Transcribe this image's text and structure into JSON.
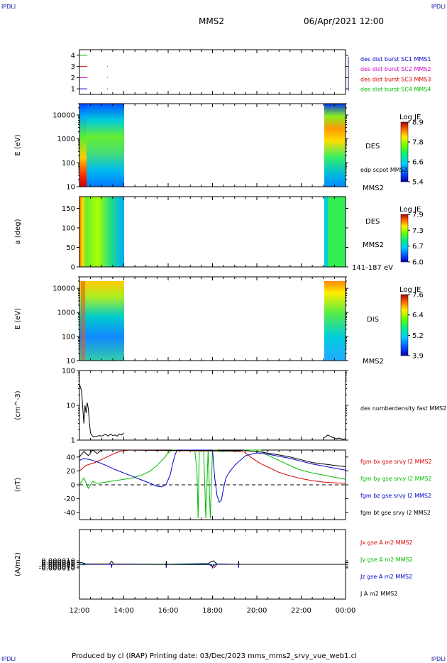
{
  "corners": {
    "tl": "IPDLI",
    "tr": "IPDLI",
    "bl": "IPDLI",
    "br": "IPDLI"
  },
  "header": {
    "spacecraft": "MMS2",
    "date": "06/Apr/2021 12:00"
  },
  "footer": {
    "text": "Produced by cl (IRAP)   Printing date: 03/Dec/2023   mms_mms2_srvy_vue_web1.cl"
  },
  "colors": {
    "sc1": "#0000cc",
    "sc2": "#cc00cc",
    "sc3": "#dd0000",
    "sc4": "#00bb00",
    "black": "#000000"
  },
  "x_axis": {
    "ticks": [
      "12:00",
      "14:00",
      "16:00",
      "18:00",
      "20:00",
      "22:00",
      "00:00"
    ],
    "range_hours": [
      12,
      24
    ]
  },
  "chart_data": [
    {
      "id": "burst",
      "type": "line",
      "ylim": [
        0.5,
        4.5
      ],
      "yticks": [
        "1",
        "2",
        "3",
        "4"
      ],
      "legend_placement": "right",
      "legend": [
        "des dist burst SC1 MMS1",
        "des dist burst SC2 MMS2",
        "des dist burst SC3 MMS3",
        "des dist burst SC4 MMS4"
      ],
      "series": [
        {
          "name": "des dist burst SC1 MMS1",
          "level": 1,
          "color": "#0000cc",
          "x_hours": [
            [
              12.0,
              12.35
            ],
            [
              13.25,
              13.27
            ],
            [
              23.3,
              23.32
            ]
          ]
        },
        {
          "name": "des dist burst SC2 MMS2",
          "level": 2,
          "color": "#cc00cc",
          "x_hours": [
            [
              12.0,
              12.35
            ],
            [
              13.25,
              13.27
            ]
          ]
        },
        {
          "name": "des dist burst SC3 MMS3",
          "level": 3,
          "color": "#dd0000",
          "x_hours": [
            [
              12.0,
              12.35
            ],
            [
              13.25,
              13.27
            ]
          ]
        },
        {
          "name": "des dist burst SC4 MMS4",
          "level": 4,
          "color": "#00bb00",
          "x_hours": [
            [
              12.0,
              12.35
            ]
          ]
        }
      ]
    },
    {
      "id": "des_energy",
      "type": "heatmap",
      "ylabel": "E (eV)",
      "ylog": true,
      "ylim": [
        10,
        30000
      ],
      "yticks": [
        "10",
        "100",
        "1000",
        "10000"
      ],
      "label": "DES",
      "note": "edp scpot MMS2",
      "sublabel": "MMS2",
      "colorbar": {
        "title": "Log JE",
        "ticks": [
          "8.9",
          "7.8",
          "6.6",
          "5.4"
        ],
        "range": [
          5.4,
          8.9
        ]
      },
      "data_intervals_hours": [
        [
          12.0,
          14.0
        ],
        [
          23.0,
          24.0
        ]
      ]
    },
    {
      "id": "des_pitch",
      "type": "heatmap",
      "ylabel": "a (deg)",
      "ylim": [
        0,
        180
      ],
      "yticks": [
        "0",
        "50",
        "100",
        "150"
      ],
      "label": "DES",
      "sublabel": "MMS2",
      "energy_note": "141-187 eV",
      "colorbar": {
        "title": "Log JE",
        "ticks": [
          "7.9",
          "7.3",
          "6.7",
          "6.0"
        ],
        "range": [
          6.0,
          7.9
        ]
      },
      "data_intervals_hours": [
        [
          12.0,
          14.0
        ],
        [
          23.0,
          24.0
        ]
      ]
    },
    {
      "id": "dis_energy",
      "type": "heatmap",
      "ylabel": "E (eV)",
      "ylog": true,
      "ylim": [
        10,
        30000
      ],
      "yticks": [
        "10",
        "100",
        "1000",
        "10000"
      ],
      "label": "DIS",
      "sublabel": "MMS2",
      "colorbar": {
        "title": "Log JE",
        "ticks": [
          "7.6",
          "6.4",
          "5.2",
          "3.9"
        ],
        "range": [
          3.9,
          7.6
        ]
      },
      "data_intervals_hours": [
        [
          12.0,
          14.0
        ],
        [
          23.0,
          24.0
        ]
      ]
    },
    {
      "id": "density",
      "type": "line",
      "ylabel": "(cm^-3)",
      "ylog": true,
      "ylim": [
        1,
        100
      ],
      "yticks": [
        "1",
        "10",
        "100"
      ],
      "legend": [
        "des numberdensity fast MMS2"
      ],
      "series": [
        {
          "name": "des numberdensity fast MMS2",
          "color": "#000000",
          "x": [
            12.0,
            12.05,
            12.1,
            12.15,
            12.2,
            12.25,
            12.3,
            12.35,
            12.4,
            12.45,
            12.5,
            12.55,
            12.6,
            12.7,
            12.8,
            12.9,
            13.0,
            13.1,
            13.2,
            13.3,
            13.4,
            13.5,
            13.6,
            13.7,
            13.8,
            13.9,
            14.0
          ],
          "y": [
            40,
            32,
            25,
            8,
            3,
            10,
            6,
            12,
            8,
            3,
            1.6,
            1.4,
            1.3,
            1.25,
            1.3,
            1.35,
            1.3,
            1.4,
            1.45,
            1.3,
            1.5,
            1.35,
            1.4,
            1.3,
            1.5,
            1.4,
            1.6
          ]
        },
        {
          "name": "des numberdensity fast MMS2",
          "color": "#000000",
          "x": [
            23.0,
            23.1,
            23.2,
            23.3,
            23.4,
            23.5,
            23.6,
            23.7,
            23.8,
            23.9,
            24.0
          ],
          "y": [
            1.15,
            1.25,
            1.4,
            1.3,
            1.2,
            1.15,
            1.1,
            1.15,
            1.1,
            1.05,
            1.1
          ]
        }
      ]
    },
    {
      "id": "fgm",
      "type": "line",
      "ylabel": "(nT)",
      "ylim": [
        -50,
        50
      ],
      "yticks": [
        "-40",
        "-20",
        "0",
        "20",
        "40"
      ],
      "legend": [
        "fgm bx gse srvy l2 MMS2",
        "fgm by gse srvy l2 MMS2",
        "fgm bz gse srvy l2 MMS2",
        "fgm bt gse srvy l2 MMS2"
      ],
      "series": [
        {
          "name": "fgm bx gse srvy l2 MMS2",
          "color": "#dd0000",
          "x": [
            12.0,
            12.3,
            12.7,
            13.1,
            13.5,
            13.8,
            14.0,
            14.2,
            19.4,
            19.8,
            20.2,
            20.6,
            21.0,
            21.5,
            22.0,
            22.5,
            23.0,
            23.5,
            24.0
          ],
          "y": [
            20,
            28,
            32,
            38,
            44,
            48,
            49,
            50,
            48,
            38,
            30,
            24,
            18,
            13,
            9,
            6,
            4,
            3,
            2
          ]
        },
        {
          "name": "fgm by gse srvy l2 MMS2",
          "color": "#00bb00",
          "x": [
            12.0,
            12.2,
            12.4,
            12.6,
            12.8,
            13.2,
            13.6,
            14.0,
            14.4,
            14.8,
            15.2,
            15.5,
            15.8,
            16.0,
            16.2,
            17.2,
            17.3,
            17.35,
            17.4,
            17.6,
            17.7,
            17.8,
            17.9,
            18.0,
            18.2,
            18.3,
            19.2,
            19.4,
            20.2,
            20.4,
            20.8,
            21.2,
            21.6,
            22.0,
            22.5,
            23.0,
            23.5,
            24.0
          ],
          "y": [
            0,
            10,
            -5,
            5,
            2,
            4,
            6,
            8,
            10,
            14,
            20,
            28,
            38,
            46,
            50,
            50,
            20,
            -48,
            50,
            50,
            -48,
            50,
            -48,
            50,
            50,
            48,
            49,
            50,
            50,
            44,
            38,
            32,
            26,
            21,
            17,
            14,
            11,
            8
          ]
        },
        {
          "name": "fgm bz gse srvy l2 MMS2",
          "color": "#0000cc",
          "x": [
            12.0,
            12.2,
            12.5,
            12.8,
            13.2,
            13.6,
            14.0,
            14.4,
            14.8,
            15.2,
            15.5,
            15.7,
            15.9,
            16.1,
            16.2,
            16.3,
            16.4,
            18.0,
            18.1,
            18.2,
            18.3,
            18.4,
            18.5,
            18.6,
            18.8,
            19.0,
            19.2,
            19.5,
            20.0,
            20.5,
            21.0,
            21.5,
            22.0,
            22.5,
            23.0,
            23.5,
            24.0
          ],
          "y": [
            35,
            38,
            36,
            33,
            28,
            22,
            17,
            12,
            7,
            2,
            -2,
            -3,
            0,
            15,
            30,
            42,
            50,
            50,
            10,
            -15,
            -25,
            -22,
            -5,
            10,
            20,
            28,
            34,
            42,
            46,
            44,
            41,
            38,
            34,
            30,
            27,
            24,
            21
          ]
        },
        {
          "name": "fgm bt gse srvy l2 MMS2",
          "color": "#000000",
          "x": [
            12.0,
            12.2,
            12.4,
            12.6,
            12.8,
            13.0,
            13.4,
            13.8,
            14.0,
            14.2,
            19.2,
            19.4,
            19.8,
            20.2,
            20.6,
            21.0,
            21.5,
            22.0,
            22.5,
            23.0,
            23.5,
            24.0
          ],
          "y": [
            40,
            48,
            42,
            50,
            45,
            50,
            50,
            50,
            50,
            50,
            49,
            50,
            48,
            47,
            45,
            43,
            40,
            36,
            32,
            30,
            28,
            26
          ]
        }
      ]
    },
    {
      "id": "current",
      "type": "line",
      "ylabel": "(A/m2)",
      "ylim": [
        -0.0001,
        0.0001
      ],
      "yticks": [
        "-0.000010",
        "-0.000005",
        "0.000000",
        "0.000005",
        "0.000010"
      ],
      "legend": [
        "Jx gse A m2 MMS2",
        "Jy gse A m2 MMS2",
        "Jz gse A m2 MMS2",
        "J A m2 MMS2"
      ],
      "series": [
        {
          "name": "Jx gse A m2 MMS2",
          "color": "#dd0000",
          "x": [
            12.0,
            13.4,
            13.45,
            13.5,
            17.8,
            17.95,
            18.1,
            18.2,
            24.0
          ],
          "y": [
            0,
            0,
            -4e-06,
            0,
            0,
            -4e-06,
            -9e-06,
            0,
            0
          ]
        },
        {
          "name": "Jy gse A m2 MMS2",
          "color": "#00bb00",
          "x": [
            12.0,
            12.2,
            12.3,
            12.4,
            14.0,
            17.9,
            18.1,
            18.2,
            24.0
          ],
          "y": [
            0,
            -2e-06,
            1e-06,
            0,
            0,
            -1e-06,
            -3e-06,
            0,
            0
          ]
        },
        {
          "name": "Jz gse A m2 MMS2",
          "color": "#0000cc",
          "x": [
            12.0,
            13.44,
            13.45,
            13.46,
            15.9,
            15.91,
            15.92,
            17.95,
            18.0,
            18.05,
            19.17,
            19.18,
            19.19,
            24.0
          ],
          "y": [
            0,
            0,
            -1e-05,
            0,
            0,
            -1e-05,
            0,
            0,
            -1e-05,
            0,
            0,
            -1e-05,
            0,
            0
          ]
        },
        {
          "name": "J A m2 MMS2",
          "color": "#000000",
          "x": [
            12.0,
            12.1,
            12.2,
            12.3,
            13.35,
            13.45,
            13.55,
            15.9,
            15.92,
            15.94,
            17.8,
            17.95,
            18.05,
            18.1,
            18.2,
            19.17,
            19.18,
            19.19,
            24.0
          ],
          "y": [
            4e-06,
            5e-06,
            3e-06,
            1e-06,
            1e-06,
            9e-06,
            1e-06,
            0,
            1e-05,
            0,
            2e-06,
            8e-06,
            1e-05,
            7e-06,
            1e-06,
            0,
            1e-05,
            0,
            0
          ]
        }
      ]
    }
  ]
}
